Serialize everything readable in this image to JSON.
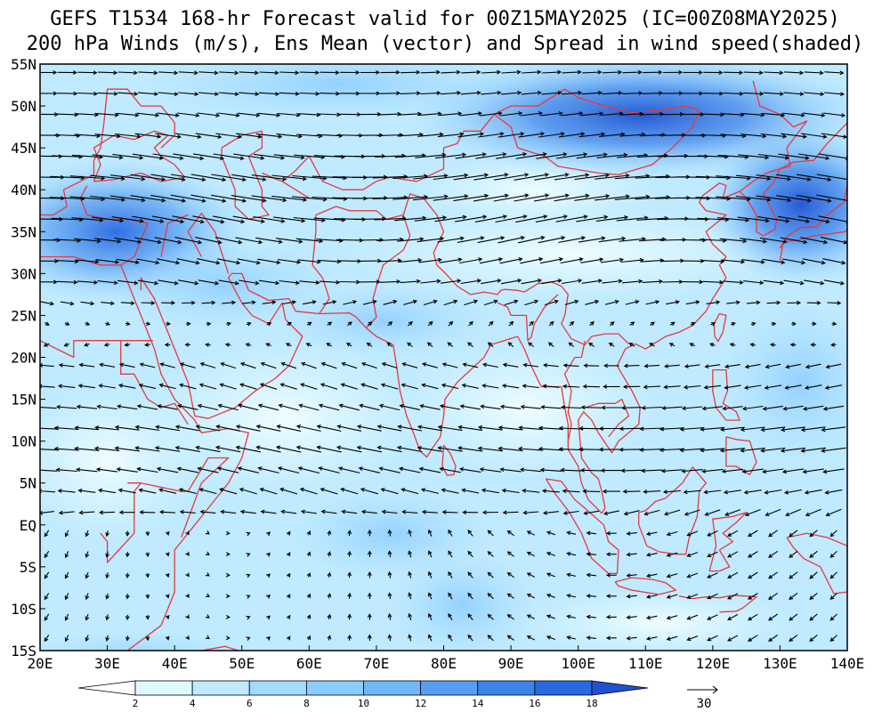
{
  "title": {
    "line1": "GEFS T1534 168-hr Forecast valid for 00Z15MAY2025 (IC=00Z08MAY2025)",
    "line2": "200 hPa Winds (m/s), Ens Mean (vector) and Spread in wind speed(shaded)"
  },
  "map": {
    "lon_range": [
      20,
      140
    ],
    "lat_range": [
      -15,
      55
    ],
    "lat_ticks": [
      {
        "value": 55,
        "label": "55N"
      },
      {
        "value": 50,
        "label": "50N"
      },
      {
        "value": 45,
        "label": "45N"
      },
      {
        "value": 40,
        "label": "40N"
      },
      {
        "value": 35,
        "label": "35N"
      },
      {
        "value": 30,
        "label": "30N"
      },
      {
        "value": 25,
        "label": "25N"
      },
      {
        "value": 20,
        "label": "20N"
      },
      {
        "value": 15,
        "label": "15N"
      },
      {
        "value": 10,
        "label": "10N"
      },
      {
        "value": 5,
        "label": "5N"
      },
      {
        "value": 0,
        "label": "EQ"
      },
      {
        "value": -5,
        "label": "5S"
      },
      {
        "value": -10,
        "label": "10S"
      },
      {
        "value": -15,
        "label": "15S"
      }
    ],
    "lon_ticks": [
      {
        "value": 20,
        "label": "20E"
      },
      {
        "value": 30,
        "label": "30E"
      },
      {
        "value": 40,
        "label": "40E"
      },
      {
        "value": 50,
        "label": "50E"
      },
      {
        "value": 60,
        "label": "60E"
      },
      {
        "value": 70,
        "label": "70E"
      },
      {
        "value": 80,
        "label": "80E"
      },
      {
        "value": 90,
        "label": "90E"
      },
      {
        "value": 100,
        "label": "100E"
      },
      {
        "value": 110,
        "label": "110E"
      },
      {
        "value": 120,
        "label": "120E"
      },
      {
        "value": 130,
        "label": "130E"
      },
      {
        "value": 140,
        "label": "140E"
      }
    ],
    "coastline_color": "#e8383d",
    "vector_color": "#000000"
  },
  "colorbar": {
    "levels": [
      "2",
      "4",
      "6",
      "8",
      "10",
      "12",
      "14",
      "16",
      "18"
    ],
    "colors": [
      "#ffffff",
      "#dffaff",
      "#bfeaff",
      "#a3dbff",
      "#8ccdff",
      "#6eb8fa",
      "#579ef2",
      "#3d84ea",
      "#2869e0",
      "#1f52d2"
    ]
  },
  "reference_vector": {
    "label": "30"
  }
}
